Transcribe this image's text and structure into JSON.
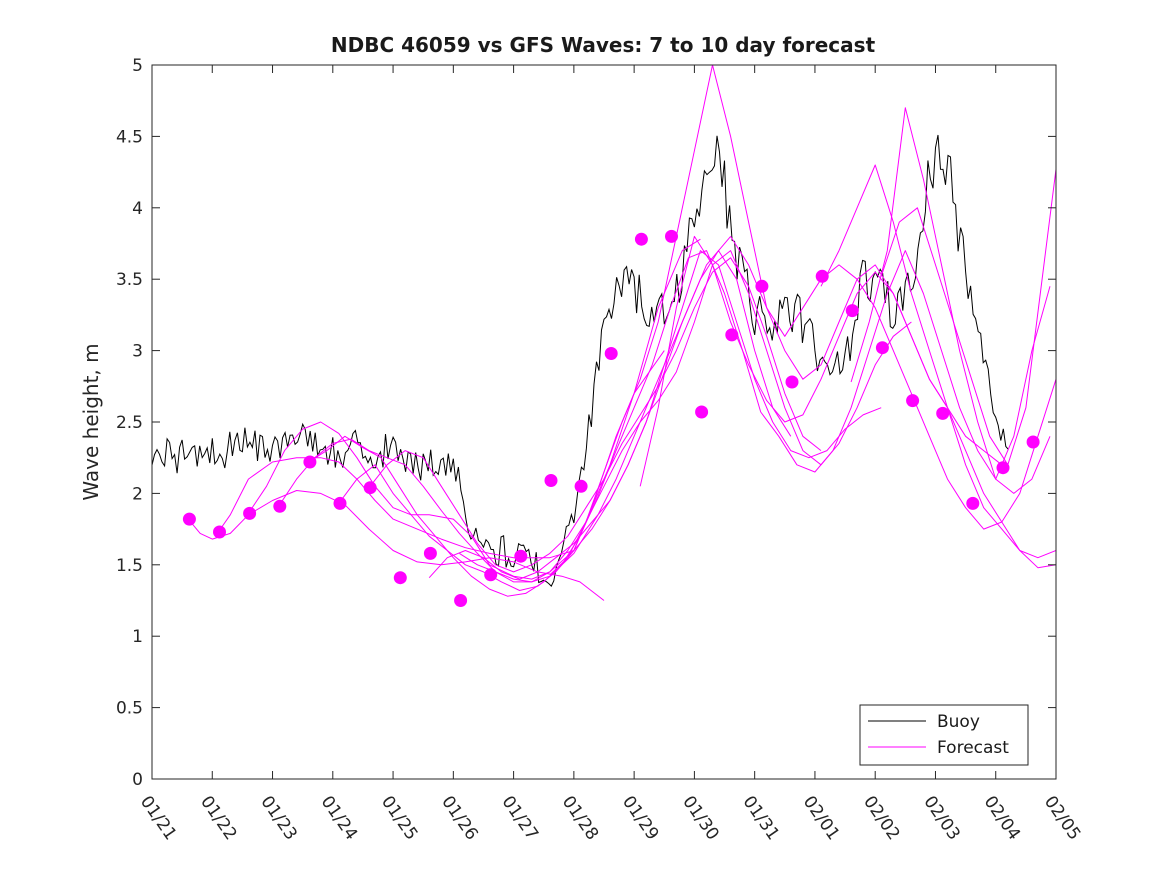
{
  "chart_data": {
    "type": "line",
    "title": "NDBC 46059 vs GFS Waves: 7 to 10 day forecast",
    "xlabel": "",
    "ylabel": "Wave height, m",
    "xlim": [
      0,
      15
    ],
    "ylim": [
      0,
      5
    ],
    "x_tick_labels": [
      "01/21",
      "01/22",
      "01/23",
      "01/24",
      "01/25",
      "01/26",
      "01/27",
      "01/28",
      "01/29",
      "01/30",
      "01/31",
      "02/01",
      "02/02",
      "02/03",
      "02/04",
      "02/05"
    ],
    "y_ticks": [
      0,
      0.5,
      1,
      1.5,
      2,
      2.5,
      3,
      3.5,
      4,
      4.5,
      5
    ],
    "y_tick_labels": [
      "0",
      "0.5",
      "1",
      "1.5",
      "2",
      "2.5",
      "3",
      "3.5",
      "4",
      "4.5",
      "5"
    ],
    "legend": {
      "position": "bottom-right",
      "entries": [
        {
          "label": "Buoy",
          "color": "#000000"
        },
        {
          "label": "Forecast",
          "color": "#ff00ff"
        }
      ]
    },
    "colors": {
      "buoy": "#000000",
      "forecast": "#ff00ff"
    },
    "buoy": {
      "name": "Buoy",
      "x": [
        0,
        0.2,
        0.4,
        0.6,
        0.8,
        1.0,
        1.2,
        1.4,
        1.6,
        1.8,
        2.0,
        2.2,
        2.4,
        2.6,
        2.8,
        3.0,
        3.2,
        3.4,
        3.6,
        3.8,
        4.0,
        4.2,
        4.4,
        4.6,
        4.8,
        5.0,
        5.2,
        5.4,
        5.6,
        5.8,
        6.0,
        6.2,
        6.4,
        6.6,
        6.8,
        7.0,
        7.2,
        7.4,
        7.6,
        7.8,
        8.0,
        8.2,
        8.4,
        8.6,
        8.8,
        9.0,
        9.2,
        9.4,
        9.6,
        9.8,
        10.0,
        10.2,
        10.4,
        10.6,
        10.8,
        11.0,
        11.2,
        11.4,
        11.6,
        11.8,
        12.0,
        12.2,
        12.4,
        12.6,
        12.8,
        13.0,
        13.2,
        13.4,
        13.6,
        13.8,
        14.0,
        14.2
      ],
      "y": [
        2.3,
        2.3,
        2.25,
        2.3,
        2.3,
        2.3,
        2.25,
        2.4,
        2.35,
        2.3,
        2.3,
        2.4,
        2.45,
        2.4,
        2.3,
        2.3,
        2.25,
        2.35,
        2.3,
        2.3,
        2.3,
        2.25,
        2.2,
        2.2,
        2.25,
        2.2,
        1.9,
        1.65,
        1.6,
        1.6,
        1.55,
        1.55,
        1.5,
        1.45,
        1.5,
        1.9,
        2.3,
        2.9,
        3.4,
        3.45,
        3.4,
        3.35,
        3.2,
        3.3,
        3.5,
        4.0,
        4.3,
        4.4,
        3.9,
        3.5,
        3.3,
        3.25,
        3.2,
        3.3,
        3.2,
        3.0,
        2.85,
        2.9,
        3.1,
        3.5,
        3.5,
        3.3,
        3.3,
        3.5,
        4.0,
        4.4,
        4.3,
        3.8,
        3.4,
        3.0,
        2.5,
        2.3
      ],
      "noise": 0.12
    },
    "forecasts": [
      {
        "x": [
          0.6,
          0.8,
          1.0,
          1.3,
          1.6,
          2.0,
          2.4,
          2.8,
          3.2,
          3.6,
          4.0,
          4.4,
          4.8,
          5.2,
          5.6,
          6.0,
          6.4,
          6.8,
          7.1,
          7.5
        ],
        "y": [
          1.82,
          1.72,
          1.68,
          1.72,
          1.85,
          1.95,
          2.02,
          2.0,
          1.92,
          1.75,
          1.6,
          1.52,
          1.5,
          1.52,
          1.55,
          1.52,
          1.45,
          1.42,
          1.38,
          1.25
        ]
      },
      {
        "x": [
          1.1,
          1.3,
          1.6,
          2.0,
          2.4,
          2.8,
          3.1,
          3.4,
          3.7,
          4.0,
          4.4,
          4.8,
          5.2,
          5.6,
          6.0,
          6.3,
          6.6,
          7.0,
          7.3,
          7.7,
          8.0,
          8.5
        ],
        "y": [
          1.73,
          1.85,
          2.1,
          2.22,
          2.25,
          2.25,
          2.22,
          2.1,
          1.95,
          1.82,
          1.75,
          1.68,
          1.62,
          1.58,
          1.55,
          1.55,
          1.55,
          1.6,
          1.9,
          2.4,
          2.7,
          3.0
        ]
      },
      {
        "x": [
          1.6,
          1.9,
          2.2,
          2.5,
          2.8,
          3.1,
          3.4,
          3.7,
          4.0,
          4.3,
          4.6,
          5.0,
          5.3,
          5.6,
          6.0,
          6.3,
          6.6,
          7.0,
          7.3,
          7.6,
          8.0,
          8.4,
          8.8,
          9.1
        ],
        "y": [
          1.86,
          2.05,
          2.3,
          2.45,
          2.5,
          2.42,
          2.25,
          2.05,
          1.9,
          1.85,
          1.85,
          1.82,
          1.7,
          1.5,
          1.42,
          1.4,
          1.45,
          1.6,
          1.9,
          2.2,
          2.7,
          3.3,
          3.7,
          3.78
        ]
      },
      {
        "x": [
          2.1,
          2.4,
          2.7,
          3.0,
          3.3,
          3.6,
          3.9,
          4.2,
          4.5,
          4.8,
          5.1,
          5.4,
          5.7,
          6.0,
          6.3,
          6.6,
          7.0,
          7.4,
          7.7,
          8.0,
          8.4,
          8.8,
          9.2,
          9.6
        ],
        "y": [
          1.91,
          2.1,
          2.25,
          2.35,
          2.38,
          2.3,
          2.25,
          2.2,
          2.05,
          1.88,
          1.72,
          1.58,
          1.45,
          1.4,
          1.38,
          1.42,
          1.58,
          1.85,
          2.1,
          2.4,
          2.8,
          3.2,
          3.6,
          3.8
        ]
      },
      {
        "x": [
          2.6,
          2.9,
          3.2,
          3.5,
          3.8,
          4.1,
          4.4,
          4.7,
          5.0,
          5.3,
          5.6,
          5.9,
          6.2,
          6.5,
          6.8,
          7.1,
          7.4,
          7.7,
          8.0,
          8.3,
          8.6,
          8.9,
          9.2,
          9.5,
          9.8,
          10.1
        ],
        "y": [
          2.22,
          2.3,
          2.4,
          2.32,
          2.25,
          2.05,
          1.85,
          1.7,
          1.55,
          1.42,
          1.33,
          1.28,
          1.3,
          1.38,
          1.5,
          1.7,
          1.98,
          2.3,
          2.6,
          2.9,
          3.3,
          3.65,
          3.7,
          3.4,
          3.0,
          2.57
        ]
      },
      {
        "x": [
          3.1,
          3.4,
          3.7,
          4.0,
          4.3,
          4.6,
          4.9,
          5.2,
          5.5,
          5.8,
          6.1,
          6.4,
          6.7,
          7.0,
          7.3,
          7.6,
          7.9,
          8.2,
          8.5,
          8.8,
          9.1,
          9.4,
          9.7,
          10.0,
          10.3,
          10.6
        ],
        "y": [
          1.93,
          2.1,
          2.2,
          2.0,
          1.85,
          1.7,
          1.6,
          1.5,
          1.45,
          1.38,
          1.32,
          1.35,
          1.45,
          1.6,
          1.75,
          1.95,
          2.2,
          2.5,
          2.85,
          3.2,
          3.5,
          3.7,
          3.5,
          3.0,
          2.6,
          2.4
        ]
      },
      {
        "x": [
          3.6,
          3.9,
          4.2,
          4.5,
          4.8,
          5.1,
          5.4,
          5.7,
          6.0,
          6.3,
          6.6,
          6.9,
          7.2,
          7.5,
          7.8,
          8.1,
          8.4,
          8.7,
          9.0,
          9.3,
          9.6,
          9.9,
          10.2,
          10.5,
          10.8,
          11.1
        ],
        "y": [
          2.04,
          2.2,
          2.3,
          2.25,
          2.05,
          1.85,
          1.65,
          1.5,
          1.45,
          1.5,
          1.58,
          1.7,
          1.9,
          2.1,
          2.35,
          2.55,
          2.75,
          3.0,
          3.3,
          3.55,
          3.65,
          3.45,
          3.1,
          2.7,
          2.4,
          2.3
        ]
      },
      {
        "x": [
          4.6,
          4.9,
          5.2,
          5.5,
          5.8,
          6.1,
          6.4,
          6.7,
          7.0,
          7.3,
          7.6,
          7.9,
          8.2,
          8.5,
          8.8,
          9.1,
          9.4,
          9.7,
          10.0,
          10.3,
          10.6,
          10.9,
          11.2,
          11.5,
          11.8,
          12.1
        ],
        "y": [
          1.41,
          1.55,
          1.6,
          1.55,
          1.45,
          1.4,
          1.45,
          1.55,
          1.65,
          1.8,
          1.95,
          2.2,
          2.5,
          2.9,
          3.3,
          3.7,
          3.6,
          3.2,
          2.8,
          2.5,
          2.3,
          2.25,
          2.3,
          2.45,
          2.55,
          2.6
        ]
      },
      {
        "x": [
          5.1,
          5.4,
          5.7,
          6.0,
          6.3,
          6.6,
          6.9,
          7.2,
          7.5,
          7.8,
          8.1,
          8.4,
          8.7,
          9.0,
          9.3,
          9.6,
          9.9,
          10.2,
          10.5,
          10.8,
          11.1,
          11.4,
          11.7,
          12.0,
          12.3,
          12.6
        ],
        "y": [
          1.58,
          1.5,
          1.45,
          1.38,
          1.38,
          1.45,
          1.6,
          1.8,
          2.05,
          2.3,
          2.5,
          2.65,
          2.85,
          3.2,
          3.6,
          3.7,
          3.4,
          3.0,
          2.6,
          2.3,
          2.2,
          2.35,
          2.6,
          2.9,
          3.1,
          3.2
        ]
      },
      {
        "x": [
          6.6,
          6.9,
          7.2,
          7.5,
          7.8,
          8.1,
          8.4,
          8.7,
          9.0,
          9.3,
          9.6,
          9.9,
          10.2,
          10.5,
          10.8,
          11.1,
          11.4,
          11.7,
          12.0,
          12.3,
          12.6,
          12.9,
          13.2,
          13.5,
          13.8,
          14.1
        ],
        "y": [
          1.43,
          1.55,
          1.8,
          2.15,
          2.5,
          2.8,
          3.2,
          3.8,
          4.4,
          5.0,
          4.5,
          3.9,
          3.3,
          3.0,
          2.8,
          2.9,
          3.2,
          3.5,
          3.6,
          3.4,
          3.1,
          2.8,
          2.6,
          2.4,
          2.3,
          2.2
        ]
      },
      {
        "x": [
          8.1,
          8.4,
          8.7,
          9.0,
          9.3,
          9.6,
          9.9,
          10.2,
          10.5,
          10.8,
          11.1,
          11.4,
          11.7,
          12.0,
          12.3,
          12.6,
          12.9,
          13.2,
          13.5,
          13.8,
          14.1,
          14.4,
          14.7,
          15.0
        ],
        "y": [
          2.05,
          2.6,
          3.3,
          3.8,
          3.6,
          3.2,
          2.9,
          2.65,
          2.5,
          2.55,
          2.8,
          3.1,
          3.4,
          3.55,
          3.4,
          3.1,
          2.8,
          2.6,
          2.3,
          2.0,
          1.8,
          1.6,
          1.48,
          1.5
        ]
      },
      {
        "x": [
          9.6,
          9.9,
          10.2,
          10.5,
          10.8,
          11.1,
          11.4,
          11.7,
          12.0,
          12.3,
          12.6,
          12.9,
          13.2,
          13.5,
          13.8,
          14.1,
          14.4,
          14.7,
          15.0
        ],
        "y": [
          3.8,
          3.6,
          3.3,
          3.1,
          3.3,
          3.5,
          3.6,
          3.5,
          3.3,
          3.0,
          2.7,
          2.4,
          2.1,
          1.9,
          1.75,
          1.8,
          2.0,
          2.4,
          2.8
        ]
      },
      {
        "x": [
          10.1,
          10.4,
          10.7,
          11.0,
          11.3,
          11.6,
          11.9,
          12.2,
          12.5,
          12.8,
          13.1,
          13.4,
          13.7,
          14.0,
          14.3,
          14.6,
          14.9
        ],
        "y": [
          2.57,
          2.4,
          2.2,
          2.15,
          2.3,
          2.6,
          3.0,
          3.4,
          3.7,
          3.4,
          3.0,
          2.6,
          2.3,
          2.1,
          2.4,
          3.0,
          3.45
        ]
      },
      {
        "x": [
          11.1,
          11.4,
          11.7,
          12.0,
          12.3,
          12.6,
          12.9,
          13.2,
          13.5,
          13.8,
          14.1,
          14.4,
          14.7,
          15.0
        ],
        "y": [
          3.45,
          3.7,
          4.0,
          4.3,
          3.9,
          3.4,
          3.0,
          2.6,
          2.2,
          1.9,
          1.75,
          1.6,
          1.55,
          1.6
        ]
      },
      {
        "x": [
          11.6,
          11.9,
          12.2,
          12.5,
          12.8,
          13.1,
          13.4,
          13.7,
          14.0,
          14.3,
          14.6,
          14.9
        ],
        "y": [
          2.78,
          3.2,
          3.7,
          4.7,
          4.2,
          3.6,
          3.0,
          2.5,
          2.1,
          2.0,
          2.1,
          2.4
        ]
      },
      {
        "x": [
          12.1,
          12.4,
          12.7,
          13.0,
          13.3,
          13.6,
          13.9,
          14.2,
          14.5,
          14.8,
          15.0
        ],
        "y": [
          3.52,
          3.9,
          4.0,
          3.6,
          3.2,
          2.8,
          2.4,
          2.2,
          2.6,
          3.6,
          4.27
        ]
      }
    ],
    "forecast_markers": {
      "x": [
        0.62,
        1.12,
        1.62,
        2.12,
        2.62,
        3.12,
        3.62,
        4.12,
        4.62,
        5.12,
        5.62,
        6.12,
        6.62,
        7.12,
        7.62,
        8.12,
        8.62,
        9.12,
        9.62,
        10.12,
        10.62,
        11.12,
        11.62,
        12.12,
        12.62,
        13.12,
        13.62,
        14.12,
        14.62
      ],
      "y": [
        1.82,
        1.73,
        1.86,
        1.91,
        2.22,
        1.93,
        2.04,
        1.41,
        1.58,
        1.25,
        1.43,
        1.56,
        2.09,
        2.05,
        2.98,
        3.78,
        3.8,
        2.57,
        3.11,
        3.45,
        2.78,
        3.52,
        3.28,
        3.02,
        2.65,
        2.56,
        1.93,
        2.18,
        2.36
      ]
    }
  }
}
